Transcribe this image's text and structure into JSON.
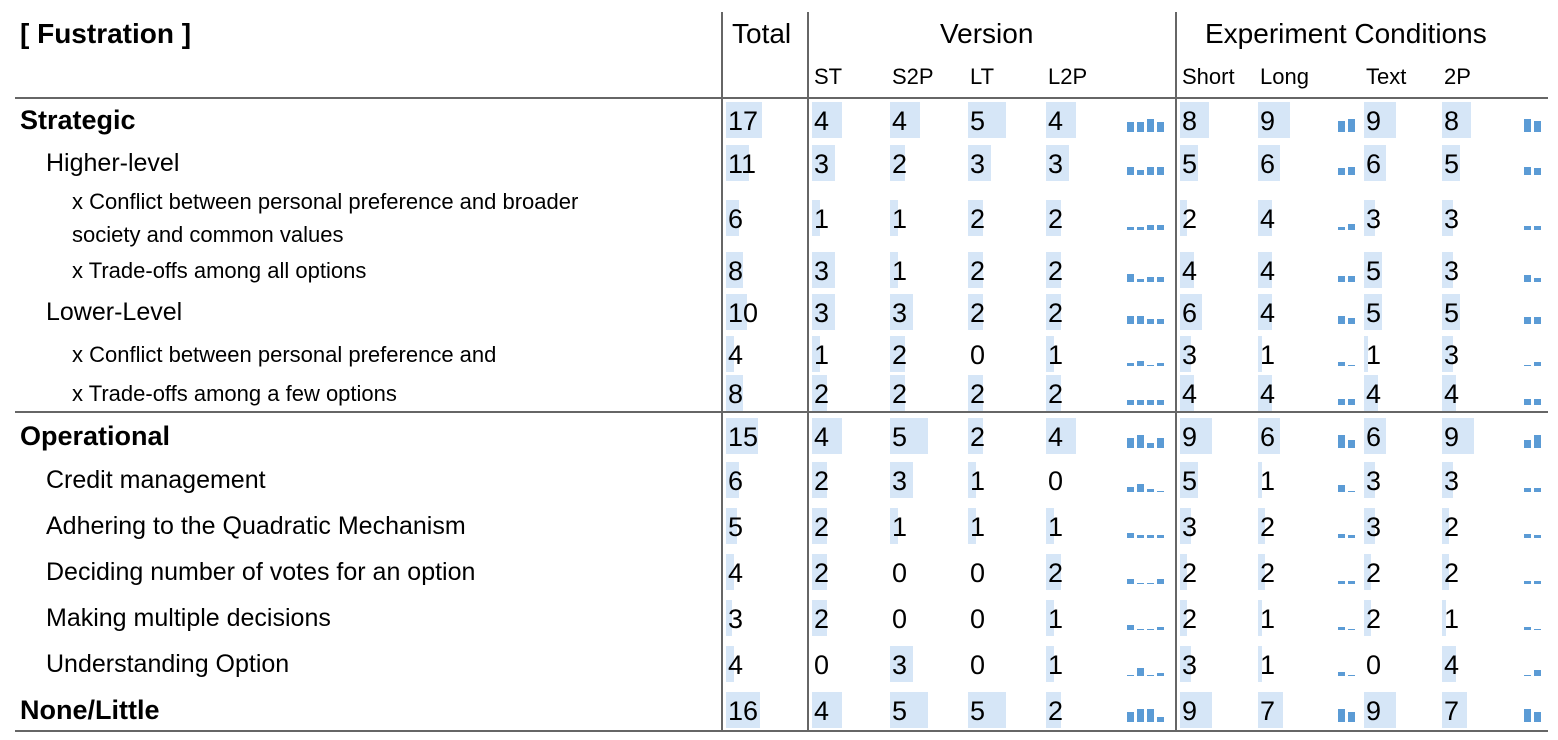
{
  "header": {
    "title": "[ Fustration ]",
    "total": "Total",
    "version": "Version",
    "experiment": "Experiment Conditions"
  },
  "columns": [
    "ST",
    "S2P",
    "LT",
    "L2P",
    "Short",
    "Long",
    "Text",
    "2P"
  ],
  "sections": [
    {
      "label": "Strategic",
      "total": 17,
      "values": [
        4,
        4,
        5,
        4,
        8,
        9,
        9,
        8
      ],
      "items": [
        {
          "label": "Higher-level",
          "total": 11,
          "values": [
            3,
            2,
            3,
            3,
            5,
            6,
            6,
            5
          ],
          "items": [
            {
              "label": "x Conflict between personal preference and broader society and common values",
              "total": 6,
              "values": [
                1,
                1,
                2,
                2,
                2,
                4,
                3,
                3
              ]
            },
            {
              "label": "x Trade-offs among all options",
              "total": 8,
              "values": [
                3,
                1,
                2,
                2,
                4,
                4,
                5,
                3
              ]
            }
          ]
        },
        {
          "label": "Lower-Level",
          "total": 10,
          "values": [
            3,
            3,
            2,
            2,
            6,
            4,
            5,
            5
          ],
          "items": [
            {
              "label": "x Conflict between personal preference and",
              "total": 4,
              "values": [
                1,
                2,
                0,
                1,
                3,
                1,
                1,
                3
              ]
            },
            {
              "label": "x Trade-offs among a few options",
              "total": 8,
              "values": [
                2,
                2,
                2,
                2,
                4,
                4,
                4,
                4
              ]
            }
          ]
        }
      ]
    },
    {
      "label": "Operational",
      "total": 15,
      "values": [
        4,
        5,
        2,
        4,
        9,
        6,
        6,
        9
      ],
      "items": [
        {
          "label": "Credit management",
          "total": 6,
          "values": [
            2,
            3,
            1,
            0,
            5,
            1,
            3,
            3
          ]
        },
        {
          "label": "Adhering to the Quadratic Mechanism",
          "total": 5,
          "values": [
            2,
            1,
            1,
            1,
            3,
            2,
            3,
            2
          ]
        },
        {
          "label": "Deciding number of votes for an option",
          "total": 4,
          "values": [
            2,
            0,
            0,
            2,
            2,
            2,
            2,
            2
          ]
        },
        {
          "label": "Making multiple decisions",
          "total": 3,
          "values": [
            2,
            0,
            0,
            1,
            2,
            1,
            2,
            1
          ]
        },
        {
          "label": "Understanding Option",
          "total": 4,
          "values": [
            0,
            3,
            0,
            1,
            3,
            1,
            0,
            4
          ]
        }
      ]
    },
    {
      "label": "None/Little",
      "total": 16,
      "values": [
        4,
        5,
        5,
        2,
        9,
        7,
        9,
        7
      ]
    }
  ]
}
